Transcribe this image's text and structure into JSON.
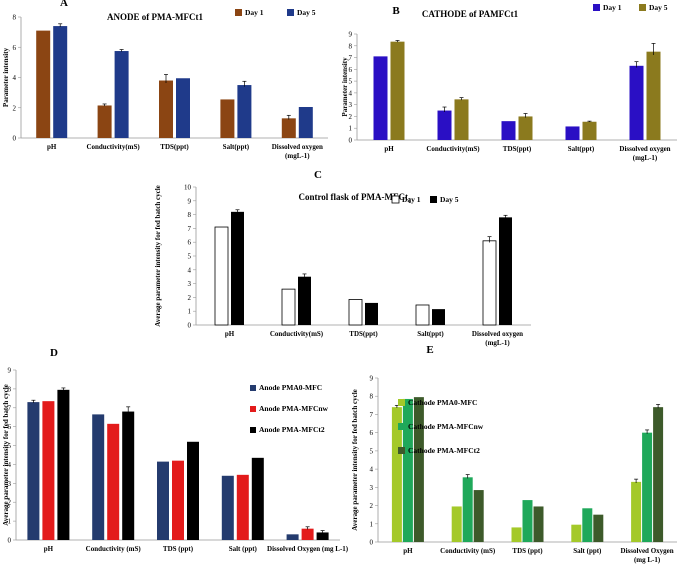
{
  "chart_data": [
    {
      "id": "A",
      "type": "bar",
      "panel_label": "A",
      "title": "ANODE of PMA-MFCt1",
      "ylabel": "Parameter intensity",
      "xlabel": "",
      "ylim": [
        0,
        8
      ],
      "ytick_step": 2,
      "legend_position": "top-right",
      "categories": [
        "pH",
        "Conductivity(mS)",
        "TDS(ppt)",
        "Salt(ppt)",
        "Dissolved oxygen\n(mgL-1)"
      ],
      "series": [
        {
          "name": "Day 1",
          "color": "#8b4513",
          "outline": "",
          "values": [
            7.1,
            2.15,
            3.8,
            2.55,
            1.3
          ],
          "errors": [
            0.0,
            0.1,
            0.4,
            0.0,
            0.2
          ]
        },
        {
          "name": "Day 5",
          "color": "#1f3a8a",
          "outline": "",
          "values": [
            7.4,
            5.75,
            3.95,
            3.5,
            2.05
          ],
          "errors": [
            0.15,
            0.1,
            0.0,
            0.25,
            0.0
          ]
        }
      ]
    },
    {
      "id": "B",
      "type": "bar",
      "panel_label": "B",
      "title": "CATHODE of PAMFCt1",
      "ylabel": "Parameter intensity",
      "xlabel": "",
      "ylim": [
        0,
        9
      ],
      "ytick_step": 1,
      "legend_position": "top-right",
      "categories": [
        "pH",
        "Conductivity(mS)",
        "TDS(ppt)",
        "Salt(ppt)",
        "Dissolved oxygen\n(mgL-1)"
      ],
      "series": [
        {
          "name": "Day 1",
          "color": "#2a0fc4",
          "outline": "",
          "values": [
            7.1,
            2.5,
            1.6,
            1.15,
            6.3
          ],
          "errors": [
            0.0,
            0.3,
            0.0,
            0.0,
            0.35
          ]
        },
        {
          "name": "Day 5",
          "color": "#8b7a1e",
          "outline": "",
          "values": [
            8.35,
            3.45,
            2.0,
            1.55,
            7.5
          ],
          "errors": [
            0.1,
            0.15,
            0.25,
            0.05,
            0.7
          ]
        }
      ]
    },
    {
      "id": "C",
      "type": "bar",
      "panel_label": "C",
      "title": "Control  flask of PMA-MFCt",
      "title_subscript": "1",
      "ylabel": "Average parameter intensity for fed batch cycle",
      "xlabel": "",
      "ylim": [
        0,
        10
      ],
      "ytick_step": 1,
      "legend_position": "top-right",
      "categories": [
        "pH",
        "Conductivity(mS)",
        "TDS(ppt)",
        "Salt(ppt)",
        "Dissolved oxygen\n(mgL-1)"
      ],
      "series": [
        {
          "name": "Day 1",
          "color": "#ffffff",
          "outline": "#000000",
          "values": [
            7.1,
            2.6,
            1.85,
            1.45,
            6.1
          ],
          "errors": [
            0.0,
            0.0,
            0.0,
            0.0,
            0.3
          ]
        },
        {
          "name": "Day 5",
          "color": "#000000",
          "outline": "",
          "values": [
            8.2,
            3.5,
            1.6,
            1.15,
            7.8
          ],
          "errors": [
            0.15,
            0.2,
            0.0,
            0.0,
            0.15
          ]
        }
      ]
    },
    {
      "id": "D",
      "type": "bar",
      "panel_label": "D",
      "title": "",
      "ylabel": "Average parameter intensity for fed batch cycle",
      "xlabel": "",
      "ylim": [
        0,
        9
      ],
      "ytick_step": 1,
      "legend_position": "top-right",
      "categories": [
        "pH",
        "Conductivity (mS)",
        "TDS (ppt)",
        "Salt (ppt)",
        "Dissolved Oxygen (mg L-1)"
      ],
      "series": [
        {
          "name": "Anode PMA0-MFC",
          "color": "#243b6e",
          "outline": "",
          "values": [
            7.3,
            6.65,
            4.15,
            3.4,
            0.3
          ],
          "errors": [
            0.1,
            0.0,
            0.0,
            0.0,
            0.0
          ]
        },
        {
          "name": "Anode PMA-MFCnw",
          "color": "#e31b1b",
          "outline": "",
          "values": [
            7.35,
            6.15,
            4.2,
            3.45,
            0.6
          ],
          "errors": [
            0.0,
            0.0,
            0.0,
            0.0,
            0.1
          ]
        },
        {
          "name": "Anode PMA-MFCt2",
          "color": "#000000",
          "outline": "",
          "values": [
            7.95,
            6.8,
            5.2,
            4.35,
            0.4
          ],
          "errors": [
            0.1,
            0.25,
            0.0,
            0.0,
            0.1
          ]
        }
      ]
    },
    {
      "id": "E",
      "type": "bar",
      "panel_label": "E",
      "title": "",
      "ylabel": "Average parameter intensity for fed batch cycle",
      "xlabel": "",
      "ylim": [
        0,
        9
      ],
      "ytick_step": 1,
      "legend_position": "top-left",
      "categories": [
        "pH",
        "Conductivity (mS)",
        "TDS (ppt)",
        "Salt (ppt)",
        "Dissolved Oxygen\n(mg L-1)"
      ],
      "series": [
        {
          "name": "Cathode PMA0-MFC",
          "color": "#a4c929",
          "outline": "",
          "values": [
            7.4,
            1.95,
            0.8,
            0.95,
            3.3
          ],
          "errors": [
            0.1,
            0.0,
            0.0,
            0.0,
            0.15
          ]
        },
        {
          "name": "Cathode  PMA-MFCnw",
          "color": "#1fa85a",
          "outline": "",
          "values": [
            7.85,
            3.55,
            2.3,
            1.85,
            6.0
          ],
          "errors": [
            0.0,
            0.15,
            0.0,
            0.0,
            0.15
          ]
        },
        {
          "name": "Cathode PMA-MFCt2",
          "color": "#3d5a2a",
          "outline": "",
          "values": [
            7.95,
            2.85,
            1.95,
            1.5,
            7.4
          ],
          "errors": [
            0.0,
            0.0,
            0.0,
            0.0,
            0.15
          ]
        }
      ]
    }
  ]
}
